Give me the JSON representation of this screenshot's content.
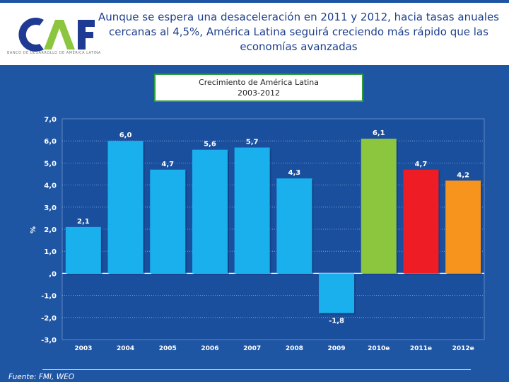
{
  "slide": {
    "title": "Aunque se espera una desaceleración en 2011 y 2012, hacia tasas anuales cercanas al 4,5%, América Latina seguirá creciendo más rápido que las economías avanzadas",
    "logo_text": "CAF",
    "logo_subtext": "BANCO DE DESARROLLO DE AMÉRICA LATINA",
    "source": "Fuente: FMI, WEO"
  },
  "colors": {
    "background": "#1f56a4",
    "plot_area": "#1a4f9e",
    "bar_historic": "#1ab0ee",
    "bar_2010e": "#8cc63f",
    "bar_2011e": "#ee1c25",
    "bar_2012e": "#f7941d",
    "logo_dark": "#1f3a93",
    "logo_green": "#8cc63f"
  },
  "chart_data": {
    "type": "bar",
    "title": "Crecimiento de América Latina",
    "subtitle": "2003-2012",
    "ylabel": "%",
    "xlabel": "",
    "ylim": [
      -3.0,
      7.0
    ],
    "yticks": [
      "7,0",
      "6,0",
      "5,0",
      "4,0",
      "3,0",
      "2,0",
      "1,0",
      ",0",
      "-1,0",
      "-2,0",
      "-3,0"
    ],
    "ytick_values": [
      7,
      6,
      5,
      4,
      3,
      2,
      1,
      0,
      -1,
      -2,
      -3
    ],
    "categories": [
      "2003",
      "2004",
      "2005",
      "2006",
      "2007",
      "2008",
      "2009",
      "2010e",
      "2011e",
      "2012e"
    ],
    "values": [
      2.1,
      6.0,
      4.7,
      5.6,
      5.7,
      4.3,
      -1.8,
      6.1,
      4.7,
      4.2
    ],
    "labels": [
      "2,1",
      "6,0",
      "4,7",
      "5,6",
      "5,7",
      "4,3",
      "-1,8",
      "6,1",
      "4,7",
      "4,2"
    ],
    "bar_colors": [
      "bar_historic",
      "bar_historic",
      "bar_historic",
      "bar_historic",
      "bar_historic",
      "bar_historic",
      "bar_historic",
      "bar_2010e",
      "bar_2011e",
      "bar_2012e"
    ],
    "grid": true
  }
}
